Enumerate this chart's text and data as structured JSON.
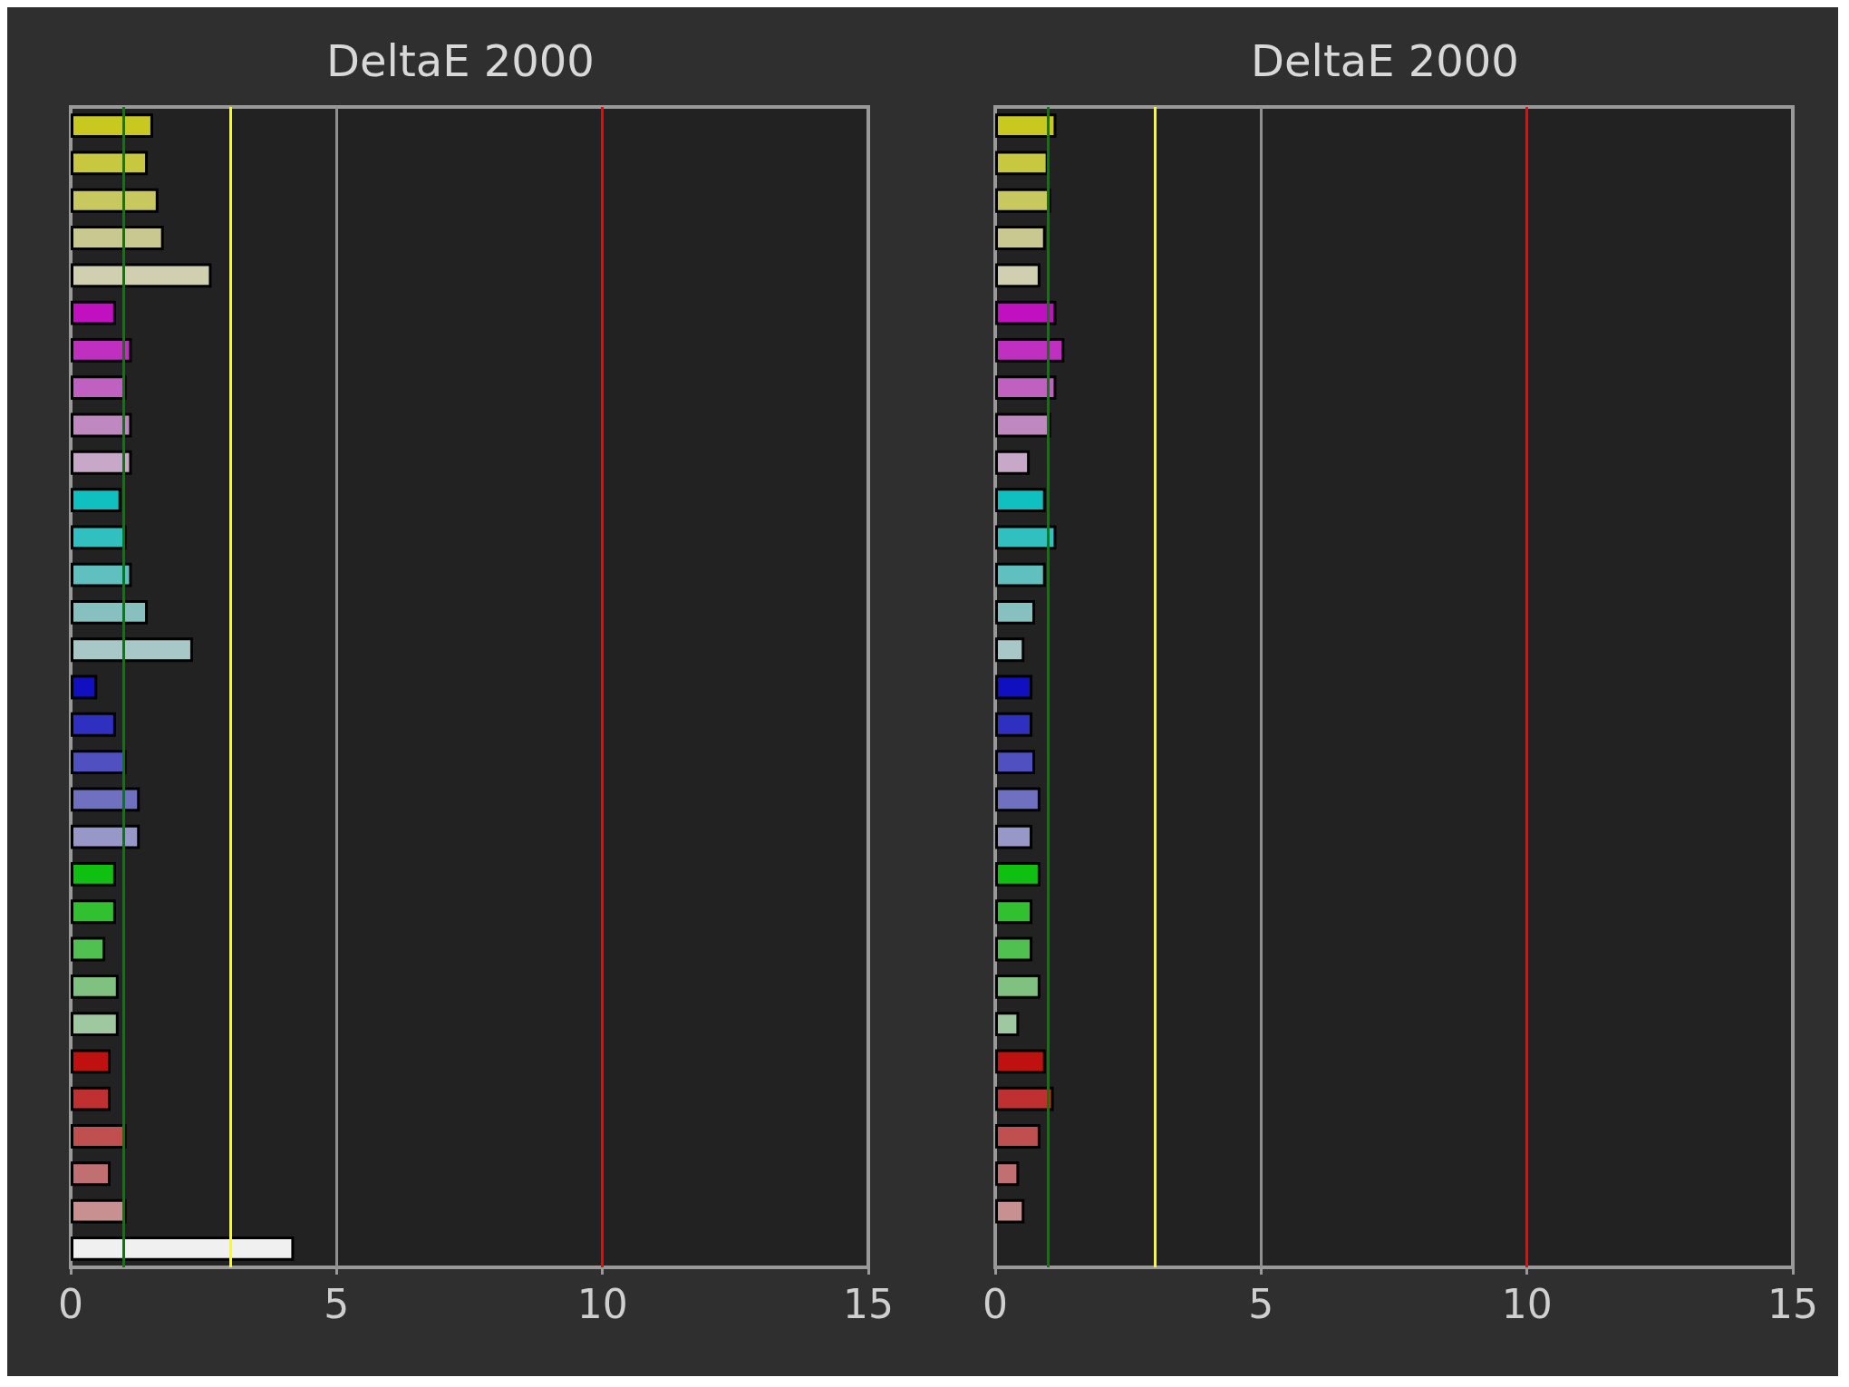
{
  "chart_data": [
    {
      "type": "bar",
      "orientation": "horizontal",
      "title": "DeltaE 2000",
      "categories": [
        null,
        null,
        null,
        null,
        null,
        null,
        null,
        null,
        null,
        null,
        null,
        null,
        null,
        null,
        null,
        null,
        null,
        null,
        null,
        null,
        null,
        null,
        null,
        null,
        null,
        null,
        null,
        null,
        null,
        null,
        null
      ],
      "values": [
        1.55,
        1.45,
        1.65,
        1.75,
        2.65,
        0.85,
        1.15,
        1.05,
        1.15,
        1.15,
        0.95,
        1.05,
        1.15,
        1.45,
        2.3,
        0.5,
        0.85,
        1.05,
        1.3,
        1.3,
        0.85,
        0.85,
        0.65,
        0.9,
        0.9,
        0.75,
        0.75,
        1.05,
        0.75,
        1.05,
        4.2
      ],
      "colors": [
        "#c8c820",
        "#c8c840",
        "#c8c860",
        "#c8c890",
        "#d0d0b0",
        "#c010c0",
        "#c030c0",
        "#c060c0",
        "#c088c0",
        "#c8a8c8",
        "#10c0c0",
        "#30c0c0",
        "#60c0c0",
        "#88c0c0",
        "#a8c8c8",
        "#1010c0",
        "#3030c0",
        "#5050c0",
        "#7070c0",
        "#9898c8",
        "#10c010",
        "#30c030",
        "#50c050",
        "#80c080",
        "#a0c8a0",
        "#c01010",
        "#c03030",
        "#c05050",
        "#c07070",
        "#c89090",
        "#f0f0f0"
      ],
      "xlim": [
        0,
        15
      ],
      "xticks": [
        0,
        5,
        10,
        15
      ],
      "tick_labels": "x",
      "ref_lines": [
        {
          "axis": "x",
          "value": 1,
          "color": "#008000"
        },
        {
          "axis": "x",
          "value": 3,
          "color": "#ffff00"
        },
        {
          "axis": "x",
          "value": 5,
          "color": "#909090"
        },
        {
          "axis": "x",
          "value": 10,
          "color": "#ff0000"
        }
      ]
    },
    {
      "type": "bar",
      "orientation": "horizontal",
      "title": "DeltaE 2000",
      "categories": [
        null,
        null,
        null,
        null,
        null,
        null,
        null,
        null,
        null,
        null,
        null,
        null,
        null,
        null,
        null,
        null,
        null,
        null,
        null,
        null,
        null,
        null,
        null,
        null,
        null,
        null,
        null,
        null,
        null,
        null,
        null
      ],
      "values": [
        1.15,
        1.0,
        1.05,
        0.95,
        0.85,
        1.15,
        1.3,
        1.15,
        1.05,
        0.65,
        0.95,
        1.15,
        0.95,
        0.75,
        0.55,
        0.7,
        0.7,
        0.75,
        0.85,
        0.7,
        0.85,
        0.7,
        0.7,
        0.85,
        0.45,
        0.95,
        1.1,
        0.85,
        0.45,
        0.55,
        null
      ],
      "colors": [
        "#c8c820",
        "#c8c840",
        "#c8c860",
        "#c8c890",
        "#d0d0b0",
        "#c010c0",
        "#c030c0",
        "#c060c0",
        "#c088c0",
        "#c8a8c8",
        "#10c0c0",
        "#30c0c0",
        "#60c0c0",
        "#88c0c0",
        "#a8c8c8",
        "#1010c0",
        "#3030c0",
        "#5050c0",
        "#7070c0",
        "#9898c8",
        "#10c010",
        "#30c030",
        "#50c050",
        "#80c080",
        "#a0c8a0",
        "#c01010",
        "#c03030",
        "#c05050",
        "#c07070",
        "#c89090",
        "#f0f0f0"
      ],
      "xlim": [
        0,
        15
      ],
      "xticks": [
        0,
        5,
        10,
        15
      ],
      "tick_labels": "x",
      "ref_lines": [
        {
          "axis": "x",
          "value": 1,
          "color": "#008000"
        },
        {
          "axis": "x",
          "value": 3,
          "color": "#ffff00"
        },
        {
          "axis": "x",
          "value": 5,
          "color": "#909090"
        },
        {
          "axis": "x",
          "value": 10,
          "color": "#ff0000"
        }
      ]
    }
  ]
}
